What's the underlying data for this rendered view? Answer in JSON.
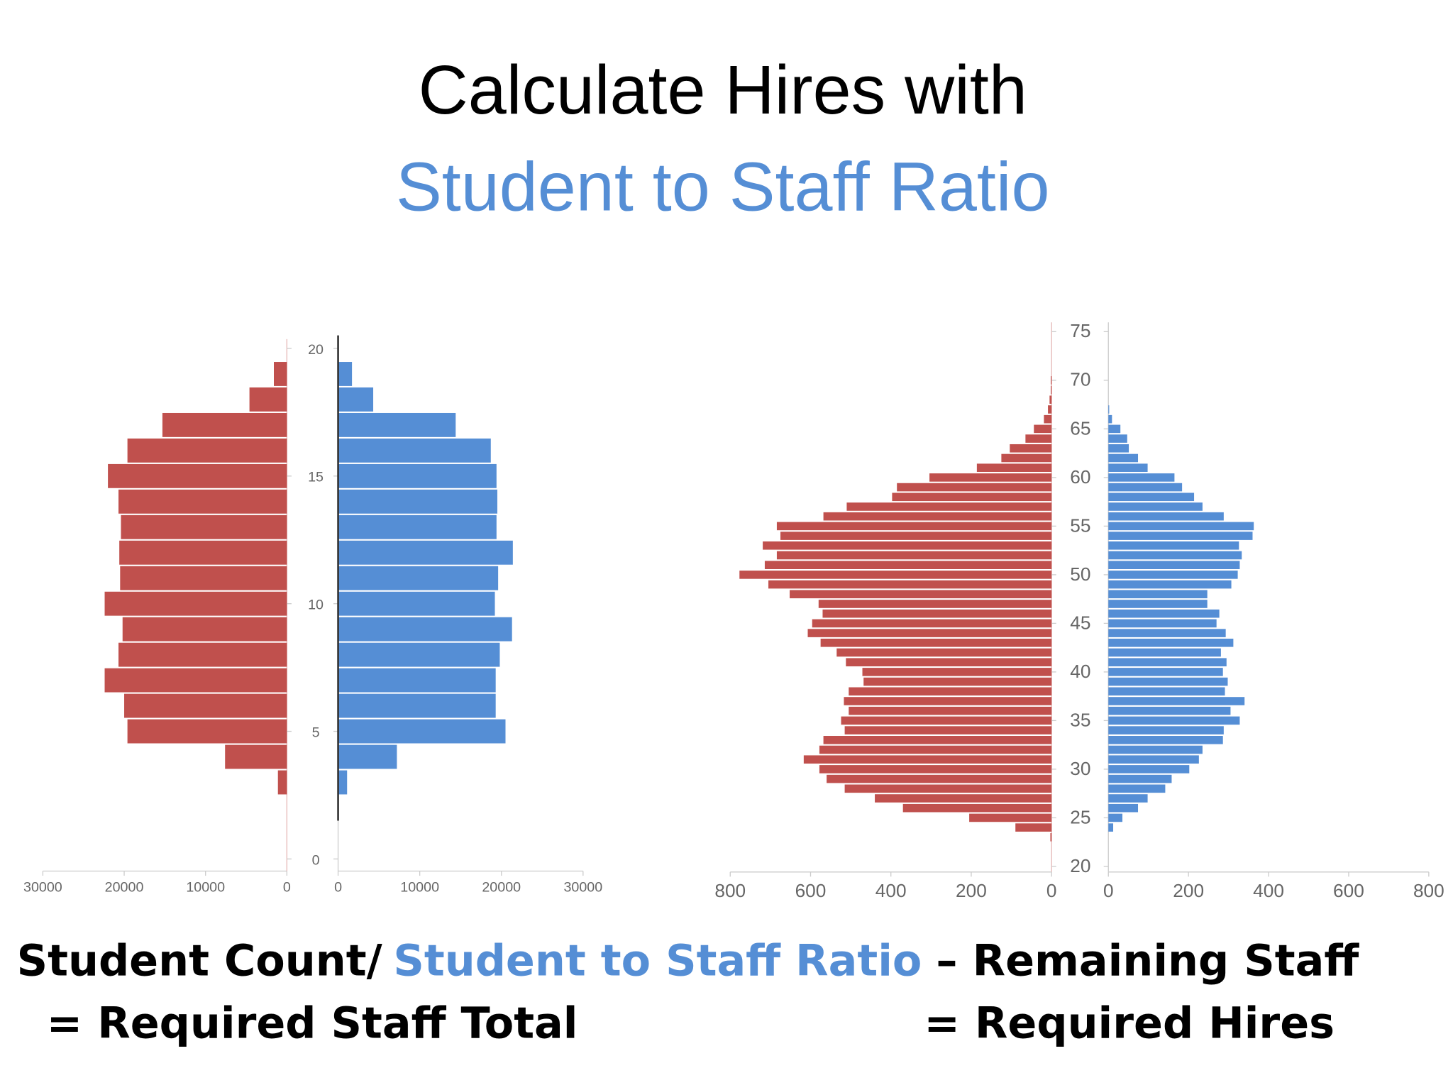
{
  "slide": {
    "title": "Calculate Hires with",
    "subtitle": "Student to Staff Ratio",
    "formula": {
      "left_numerator": "Student Count/",
      "left_ratio": "Student to Staff Ratio",
      "left_result": "=  Required Staff Total",
      "right_minus": "– Remaining Staff",
      "right_result": "=  Required Hires"
    }
  },
  "chart_data": [
    {
      "type": "pyramid",
      "y": [
        3,
        4,
        5,
        6,
        7,
        8,
        9,
        10,
        11,
        12,
        13,
        14,
        15,
        16,
        17,
        18,
        19
      ],
      "series": [
        {
          "color": "#c0504d",
          "side": "left",
          "values": [
            1100,
            7600,
            19600,
            20000,
            22400,
            20700,
            20200,
            22400,
            20500,
            20600,
            20400,
            20700,
            22000,
            19600,
            15300,
            4600,
            1600
          ]
        },
        {
          "color": "#558ed5",
          "side": "right",
          "values": [
            1100,
            7200,
            20500,
            19300,
            19300,
            19800,
            21300,
            19200,
            19600,
            21400,
            19400,
            19500,
            19400,
            18700,
            14400,
            4300,
            1700
          ]
        }
      ],
      "xlim": [
        0,
        30000
      ],
      "xticks": [
        0,
        10000,
        20000,
        30000
      ],
      "ylim": [
        0,
        20
      ],
      "yticks": [
        0,
        5,
        10,
        15,
        20
      ]
    },
    {
      "type": "pyramid",
      "y": [
        23,
        24,
        25,
        26,
        27,
        28,
        29,
        30,
        31,
        32,
        33,
        34,
        35,
        36,
        37,
        38,
        39,
        40,
        41,
        42,
        43,
        44,
        45,
        46,
        47,
        48,
        49,
        50,
        51,
        52,
        53,
        54,
        55,
        56,
        57,
        58,
        59,
        60,
        61,
        62,
        63,
        64,
        65,
        66,
        67,
        68,
        69,
        70
      ],
      "series": [
        {
          "color": "#c0504d",
          "side": "left",
          "values": [
            3,
            90,
            205,
            370,
            440,
            515,
            560,
            578,
            617,
            578,
            568,
            515,
            524,
            505,
            517,
            505,
            468,
            471,
            512,
            535,
            575,
            607,
            596,
            570,
            580,
            652,
            705,
            777,
            714,
            684,
            719,
            675,
            684,
            568,
            510,
            397,
            385,
            304,
            186,
            125,
            104,
            65,
            44,
            19,
            9,
            5,
            2,
            2
          ]
        },
        {
          "color": "#558ed5",
          "side": "right",
          "values": [
            0,
            12,
            35,
            74,
            98,
            142,
            158,
            202,
            226,
            235,
            286,
            288,
            328,
            305,
            340,
            291,
            298,
            286,
            295,
            281,
            312,
            293,
            270,
            277,
            247,
            247,
            307,
            323,
            328,
            333,
            326,
            360,
            363,
            288,
            235,
            214,
            184,
            165,
            98,
            74,
            51,
            47,
            30,
            9,
            2,
            0,
            0,
            0
          ]
        }
      ],
      "xlim": [
        0,
        800
      ],
      "xticks": [
        0,
        200,
        400,
        600,
        800
      ],
      "ylim": [
        20,
        75
      ],
      "yticks": [
        20,
        25,
        30,
        35,
        40,
        45,
        50,
        55,
        60,
        65,
        70,
        75
      ]
    }
  ]
}
